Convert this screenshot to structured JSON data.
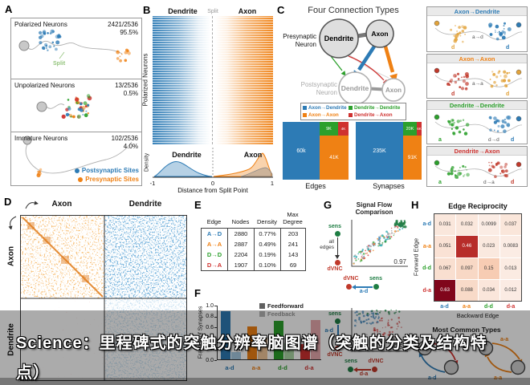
{
  "overlay": {
    "line1": "Science：里程碑式的突触分辨率脑图谱（突触的分类及结构特",
    "line2": "点）"
  },
  "colors": {
    "ad": "#2d7bb5",
    "aa": "#ef8114",
    "dd": "#2ca02c",
    "da": "#cf3230",
    "ad_light": "#a6c9e1",
    "aa_light": "#f2c79a",
    "dd_light": "#abd5a5",
    "da_light": "#e7a9ad",
    "sens": "#1e7d43",
    "dvnc": "#c0392b",
    "feedforward": "#606060",
    "feedback": "#b5b5b5"
  },
  "panelA": {
    "label": "A",
    "split_label": "Split",
    "sections": [
      {
        "title": "Polarized Neurons",
        "count": "2421/2536",
        "pct": "95.5%"
      },
      {
        "title": "Unpolarized Neurons",
        "count": "13/2536",
        "pct": "0.5%"
      },
      {
        "title": "Immature Neurons",
        "count": "102/2536",
        "pct": "4.0%"
      }
    ],
    "legend": [
      {
        "label": "Postsynaptic Sites"
      },
      {
        "label": "Presynaptic Sites"
      }
    ]
  },
  "panelB": {
    "label": "B",
    "col_dendrite": "Dendrite",
    "col_split": "Split",
    "col_axon": "Axon",
    "ylabel": "Polarized Neurons",
    "density_label": "Density",
    "dens_dendrite": "Dendrite",
    "dens_axon": "Axon",
    "xlabel": "Distance from Split Point",
    "xticks": [
      "-1",
      "0",
      "1"
    ]
  },
  "panelC": {
    "label": "C",
    "title": "Four Connection Types",
    "pre1": "Presynaptic",
    "pre2": "Neuron",
    "post1": "Postsynaptic",
    "post2": "Neuron",
    "dendrite": "Dendrite",
    "axon": "Axon",
    "legend": [
      {
        "key": "ad",
        "label": "Axon→Dendrite"
      },
      {
        "key": "dd",
        "label": "Dendrite→Dendrite"
      },
      {
        "key": "aa",
        "label": "Axon→Axon"
      },
      {
        "key": "da",
        "label": "Dendrite→Axon"
      }
    ],
    "edges_caption": "Edges",
    "synapses_caption": "Synapses"
  },
  "examples": [
    {
      "key": "ad",
      "title": "Axon→Dendrite",
      "l1": "d",
      "l2": "d",
      "edge": "a→d",
      "c1": "#e2a33b",
      "c2": "#2d7bb5"
    },
    {
      "key": "aa",
      "title": "Axon→Axon",
      "l1": "d",
      "l2": "d",
      "edge": "a→a",
      "c1": "#c0392b",
      "c2": "#e2a33b"
    },
    {
      "key": "dd",
      "title": "Dendrite→Dendrite",
      "l1": "a",
      "l2": "d",
      "edge": "d→d",
      "c1": "#2ca02c",
      "c2": "#2d7bb5"
    },
    {
      "key": "da",
      "title": "Dendrite→Axon",
      "l1": "a",
      "l2": "d",
      "edge": "d→a",
      "c1": "#2ca02c",
      "c2": "#c0392b"
    }
  ],
  "panelD": {
    "label": "D",
    "col_axon": "Axon",
    "col_dendrite": "Dendrite",
    "row_axon": "Axon",
    "row_dendrite": "Dendrite"
  },
  "panelE": {
    "label": "E",
    "h_edge": "Edge",
    "h_nodes": "Nodes",
    "h_density": "Density",
    "h_max1": "Max",
    "h_max2": "Degree"
  },
  "panelF": {
    "label": "F",
    "ylabel": "Fraction of Synapses",
    "legend_ff": "Feedforward",
    "legend_fb": "Feedback",
    "yticks": [
      "1.0",
      "0.8",
      "0.6",
      "0.4",
      "0.2",
      "0.0"
    ]
  },
  "panelG": {
    "label": "G",
    "title1": "Signal Flow",
    "title2": "Comparison",
    "top": {
      "y_top": "sens",
      "y_bottom": "dVNC",
      "y_arrow": "all edges",
      "corr": "0.97",
      "x_left": "dVNC",
      "x_right": "sens",
      "x_arrow": "a-d"
    },
    "bottom": {
      "y_top": "sens",
      "y_bottom": "dVNC",
      "y_arrow": "a-d",
      "corr": "-0.59",
      "x_left": "sens",
      "x_right": "dVNC",
      "x_arrow": "d-a"
    }
  },
  "panelH": {
    "label": "H",
    "title": "Edge Reciprocity",
    "ylabel": "Forward Edge",
    "xlabel": "Backward Edge"
  },
  "motifs": {
    "title": "Most Common Types",
    "pairs": [
      {
        "top_label": "d-a",
        "bottom_label": "a-d"
      },
      {
        "top_label": "a-a",
        "bottom_label": "a-a"
      }
    ]
  },
  "chart_data": [
    {
      "type": "pie",
      "title": "Neuron polarization (Panel A)",
      "categories": [
        "Polarized Neurons",
        "Unpolarized Neurons",
        "Immature Neurons"
      ],
      "values": [
        2421,
        13,
        102
      ],
      "total": 2536,
      "pct_labels": [
        "95.5%",
        "0.5%",
        "4.0%"
      ]
    },
    {
      "type": "bar",
      "title": "Edges",
      "categories": [
        "Axon→Dendrite",
        "Axon→Axon",
        "Dendrite→Dendrite",
        "Dendrite→Axon"
      ],
      "values": [
        60000,
        41000,
        9000,
        4000
      ],
      "value_labels": [
        "60k",
        "41K",
        "9K",
        "4K"
      ]
    },
    {
      "type": "bar",
      "title": "Synapses",
      "categories": [
        "Axon→Dendrite",
        "Axon→Axon",
        "Dendrite→Dendrite",
        "Dendrite→Axon"
      ],
      "values": [
        235000,
        91000,
        20000,
        6000
      ],
      "value_labels": [
        "235K",
        "91K",
        "20K",
        "6K"
      ]
    },
    {
      "type": "table",
      "title": "Connection type statistics (Panel E)",
      "columns": [
        "Edge",
        "Nodes",
        "Density",
        "Max Degree"
      ],
      "rows": [
        [
          "A→D",
          "2880",
          "0.77%",
          "203"
        ],
        [
          "A→A",
          "2887",
          "0.49%",
          "241"
        ],
        [
          "D→D",
          "2204",
          "0.19%",
          "143"
        ],
        [
          "D→A",
          "1907",
          "0.10%",
          "69"
        ]
      ]
    },
    {
      "type": "bar",
      "title": "Fraction of Synapses (Panel F)",
      "categories": [
        "a-d",
        "a-a",
        "d-d",
        "d-a"
      ],
      "series": [
        {
          "name": "Feedforward",
          "values": [
            0.88,
            0.6,
            0.7,
            0.28
          ]
        },
        {
          "name": "Feedback",
          "values": [
            0.13,
            0.4,
            0.3,
            0.72
          ]
        }
      ],
      "ylim": [
        0,
        1
      ],
      "ylabel": "Fraction of Synapses"
    },
    {
      "type": "scatter",
      "title": "Signal Flow Comparison (Panel G)",
      "plots": [
        {
          "x_axis": "a-d",
          "y_axis": "all edges",
          "correlation": 0.97
        },
        {
          "x_axis": "d-a",
          "y_axis": "a-d",
          "correlation": -0.59
        }
      ]
    },
    {
      "type": "heatmap",
      "title": "Edge Reciprocity (Panel H)",
      "xlabel": "Backward Edge",
      "ylabel": "Forward Edge",
      "x": [
        "a-d",
        "a-a",
        "d-d",
        "d-a"
      ],
      "y": [
        "a-d",
        "a-a",
        "d-d",
        "d-a"
      ],
      "values": [
        [
          0.031,
          0.032,
          0.0099,
          0.037
        ],
        [
          0.051,
          0.46,
          0.023,
          0.0083
        ],
        [
          0.067,
          0.097,
          0.15,
          0.013
        ],
        [
          0.63,
          0.088,
          0.034,
          0.012
        ]
      ]
    }
  ]
}
